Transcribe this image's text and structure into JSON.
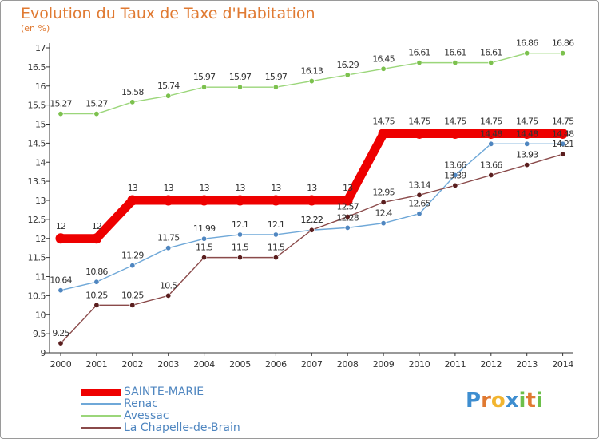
{
  "chart_data": {
    "type": "line",
    "title": "Evolution du Taux de Taxe d'Habitation",
    "ylabel": "(en %)",
    "xlabel": "",
    "x": [
      "2000",
      "2001",
      "2002",
      "2003",
      "2004",
      "2005",
      "2006",
      "2007",
      "2008",
      "2009",
      "2010",
      "2011",
      "2012",
      "2013",
      "2014"
    ],
    "ylim": [
      9,
      17
    ],
    "yticks": [
      "9",
      "9.5",
      "10",
      "10.5",
      "11",
      "11.5",
      "12",
      "12.5",
      "13",
      "13.5",
      "14",
      "14.5",
      "15",
      "15.5",
      "16",
      "16.5",
      "17"
    ],
    "grid": false,
    "legend_position": "bottom-left",
    "series": [
      {
        "name": "SAINTE-MARIE",
        "color": "#ee0000",
        "marker_color": "#ee0000",
        "style": "thick",
        "values": [
          12,
          12,
          13,
          13,
          13,
          13,
          13,
          13,
          13,
          14.75,
          14.75,
          14.75,
          14.75,
          14.75,
          14.75
        ],
        "labels": [
          "12",
          "12",
          "13",
          "13",
          "13",
          "13",
          "13",
          "13",
          "13",
          "14.75",
          "14.75",
          "14.75",
          "14.75",
          "14.75",
          "14.75"
        ]
      },
      {
        "name": "Renac",
        "color": "#6fa8d8",
        "marker_color": "#4f86c0",
        "style": "thin",
        "values": [
          10.64,
          10.86,
          11.29,
          11.75,
          11.99,
          12.1,
          12.1,
          12.22,
          12.28,
          12.4,
          12.65,
          13.66,
          14.48,
          14.48,
          14.48
        ],
        "labels": [
          "10.64",
          "10.86",
          "11.29",
          "11.75",
          "11.99",
          "12.1",
          "12.1",
          "12.22",
          "12.28",
          "12.4",
          "12.65",
          "13.66",
          "14.48",
          "14.48",
          "14.48"
        ]
      },
      {
        "name": "Avessac",
        "color": "#9bd67a",
        "marker_color": "#7cc14e",
        "style": "thin",
        "values": [
          15.27,
          15.27,
          15.58,
          15.74,
          15.97,
          15.97,
          15.97,
          16.13,
          16.29,
          16.45,
          16.61,
          16.61,
          16.61,
          16.86,
          16.86
        ],
        "labels": [
          "15.27",
          "15.27",
          "15.58",
          "15.74",
          "15.97",
          "15.97",
          "15.97",
          "16.13",
          "16.29",
          "16.45",
          "16.61",
          "16.61",
          "16.61",
          "16.86",
          "16.86"
        ]
      },
      {
        "name": "La Chapelle-de-Brain",
        "color": "#8a4a4a",
        "marker_color": "#5a1e1e",
        "style": "thin",
        "values": [
          9.25,
          10.25,
          10.25,
          10.5,
          11.5,
          11.5,
          11.5,
          12.22,
          12.57,
          12.95,
          13.14,
          13.39,
          13.66,
          13.93,
          14.21
        ],
        "labels": [
          "9.25",
          "10.25",
          "10.25",
          "10.5",
          "11.5",
          "11.5",
          "11.5",
          "12.22",
          "12.57",
          "12.95",
          "13.14",
          "13.39",
          "13.66",
          "13.93",
          "14.21"
        ]
      }
    ]
  },
  "logo": {
    "letters": [
      {
        "ch": "P",
        "color": "#3e8ed0"
      },
      {
        "ch": "r",
        "color": "#e07a32"
      },
      {
        "ch": "o",
        "color": "#f2b530"
      },
      {
        "ch": "x",
        "color": "#3e8ed0"
      },
      {
        "ch": "i",
        "color": "#6cbf4a"
      },
      {
        "ch": "t",
        "color": "#e07a32"
      },
      {
        "ch": "i",
        "color": "#6cbf4a"
      }
    ]
  }
}
